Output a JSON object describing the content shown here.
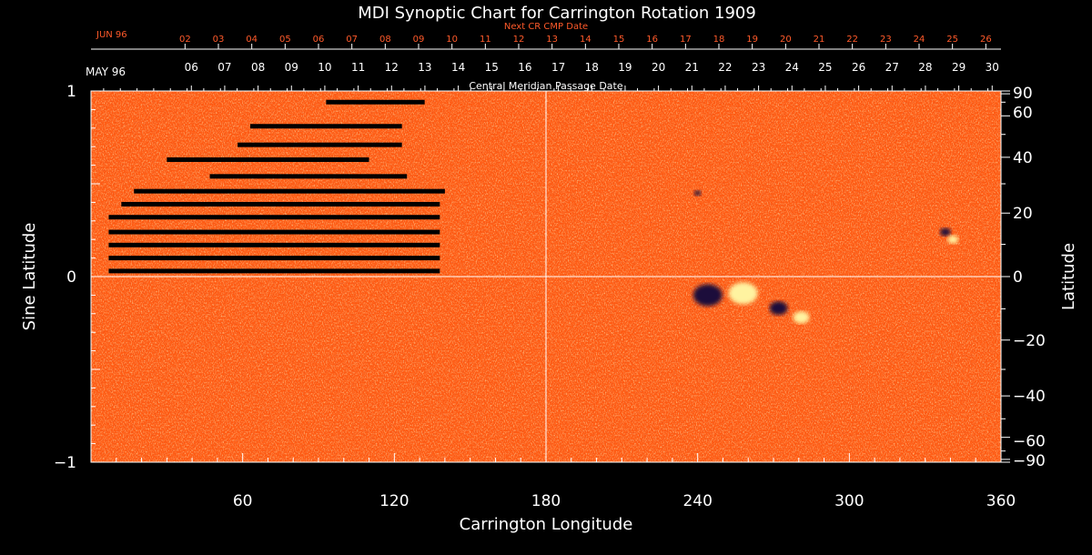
{
  "chart_data": {
    "type": "heatmap",
    "title": "MDI Synoptic Chart for Carrington Rotation 1909",
    "xlabel": "Carrington Longitude",
    "ylabel_left": "Sine Latitude",
    "ylabel_right": "Latitude",
    "xlim": [
      0,
      360
    ],
    "ylim_sine": [
      -1,
      1
    ],
    "x_ticks": [
      60,
      120,
      180,
      240,
      300,
      360
    ],
    "y_left_ticks": [
      {
        "value": 1,
        "label": "1"
      },
      {
        "value": 0,
        "label": "0"
      },
      {
        "value": -1,
        "label": "−1"
      }
    ],
    "y_right_ticks": [
      {
        "deg": 90,
        "label": "90"
      },
      {
        "deg": 60,
        "label": "60"
      },
      {
        "deg": 40,
        "label": "40"
      },
      {
        "deg": 20,
        "label": "20"
      },
      {
        "deg": 0,
        "label": "0"
      },
      {
        "deg": -20,
        "label": "−20"
      },
      {
        "deg": -40,
        "label": "−40"
      },
      {
        "deg": -60,
        "label": "−60"
      },
      {
        "deg": -90,
        "label": "−90"
      }
    ],
    "top_axis_current": {
      "month_label": "MAY 96",
      "caption": "Central Meridian Passage Date",
      "days": [
        {
          "label": "30",
          "lon": 356.5
        },
        {
          "label": "29",
          "lon": 343.3
        },
        {
          "label": "28",
          "lon": 330.1
        },
        {
          "label": "27",
          "lon": 316.9
        },
        {
          "label": "26",
          "lon": 303.7
        },
        {
          "label": "25",
          "lon": 290.5
        },
        {
          "label": "24",
          "lon": 277.3
        },
        {
          "label": "23",
          "lon": 264.1
        },
        {
          "label": "22",
          "lon": 250.9
        },
        {
          "label": "21",
          "lon": 237.7
        },
        {
          "label": "20",
          "lon": 224.5
        },
        {
          "label": "19",
          "lon": 211.3
        },
        {
          "label": "18",
          "lon": 198.1
        },
        {
          "label": "17",
          "lon": 184.9
        },
        {
          "label": "16",
          "lon": 171.7
        },
        {
          "label": "15",
          "lon": 158.5
        },
        {
          "label": "14",
          "lon": 145.3
        },
        {
          "label": "13",
          "lon": 132.1
        },
        {
          "label": "12",
          "lon": 118.9
        },
        {
          "label": "11",
          "lon": 105.7
        },
        {
          "label": "10",
          "lon": 92.5
        },
        {
          "label": "09",
          "lon": 79.3
        },
        {
          "label": "08",
          "lon": 66.1
        },
        {
          "label": "07",
          "lon": 52.9
        },
        {
          "label": "06",
          "lon": 39.7
        }
      ]
    },
    "top_axis_next": {
      "month_label": "JUN 96",
      "caption": "Next CR CMP Date",
      "color": "#ff5a2a",
      "days": [
        {
          "label": "26",
          "lon": 354.0
        },
        {
          "label": "25",
          "lon": 340.8
        },
        {
          "label": "24",
          "lon": 327.6
        },
        {
          "label": "23",
          "lon": 314.4
        },
        {
          "label": "22",
          "lon": 301.2
        },
        {
          "label": "21",
          "lon": 288.0
        },
        {
          "label": "20",
          "lon": 274.8
        },
        {
          "label": "19",
          "lon": 261.6
        },
        {
          "label": "18",
          "lon": 248.4
        },
        {
          "label": "17",
          "lon": 235.2
        },
        {
          "label": "16",
          "lon": 222.0
        },
        {
          "label": "15",
          "lon": 208.8
        },
        {
          "label": "14",
          "lon": 195.6
        },
        {
          "label": "13",
          "lon": 182.4
        },
        {
          "label": "12",
          "lon": 169.2
        },
        {
          "label": "11",
          "lon": 156.0
        },
        {
          "label": "10",
          "lon": 142.8
        },
        {
          "label": "09",
          "lon": 129.6
        },
        {
          "label": "08",
          "lon": 116.4
        },
        {
          "label": "07",
          "lon": 103.2
        },
        {
          "label": "06",
          "lon": 90.0
        },
        {
          "label": "05",
          "lon": 76.8
        },
        {
          "label": "04",
          "lon": 63.6
        },
        {
          "label": "03",
          "lon": 50.4
        },
        {
          "label": "02",
          "lon": 37.2
        }
      ]
    },
    "colors": {
      "background_field": "#ff5a12",
      "positive_polarity": "#fff3a0",
      "negative_polarity": "#1a0a3a",
      "axes": "#ffffff",
      "data_gap": "#000000"
    },
    "features": {
      "data_gaps": [
        {
          "lon": [
            93,
            132
          ],
          "sinlat": 0.94
        },
        {
          "lon": [
            63,
            123
          ],
          "sinlat": 0.81
        },
        {
          "lon": [
            58,
            123
          ],
          "sinlat": 0.71
        },
        {
          "lon": [
            30,
            110
          ],
          "sinlat": 0.63
        },
        {
          "lon": [
            47,
            125
          ],
          "sinlat": 0.54
        },
        {
          "lon": [
            17,
            140
          ],
          "sinlat": 0.46
        },
        {
          "lon": [
            12,
            138
          ],
          "sinlat": 0.39
        },
        {
          "lon": [
            7,
            138
          ],
          "sinlat": 0.32
        },
        {
          "lon": [
            7,
            138
          ],
          "sinlat": 0.24
        },
        {
          "lon": [
            7,
            138
          ],
          "sinlat": 0.17
        },
        {
          "lon": [
            7,
            138
          ],
          "sinlat": 0.1
        },
        {
          "lon": [
            7,
            138
          ],
          "sinlat": 0.03
        }
      ],
      "active_regions": [
        {
          "lon": 244,
          "sinlat": -0.1,
          "polarity": "negative",
          "size": 16
        },
        {
          "lon": 258,
          "sinlat": -0.09,
          "polarity": "positive",
          "size": 16
        },
        {
          "lon": 272,
          "sinlat": -0.17,
          "polarity": "negative",
          "size": 10
        },
        {
          "lon": 281,
          "sinlat": -0.22,
          "polarity": "positive",
          "size": 9
        },
        {
          "lon": 338,
          "sinlat": 0.24,
          "polarity": "negative",
          "size": 6
        },
        {
          "lon": 341,
          "sinlat": 0.2,
          "polarity": "positive",
          "size": 6
        },
        {
          "lon": 240,
          "sinlat": 0.45,
          "polarity": "negative",
          "size": 4
        }
      ]
    },
    "grid": "crosshair at lon 180 and sine-latitude 0",
    "legend": "none"
  }
}
